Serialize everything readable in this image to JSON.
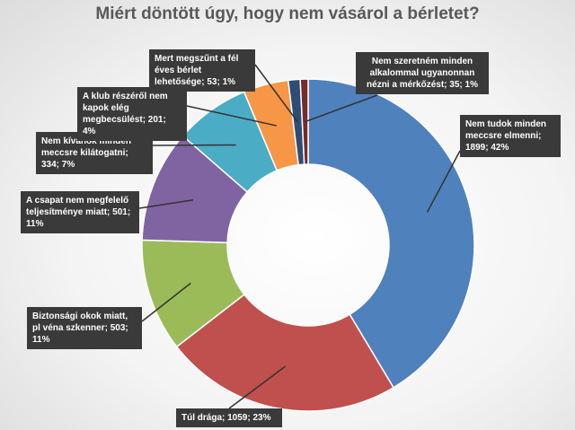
{
  "chart_data": {
    "type": "pie",
    "variant": "donut",
    "title": "Miért döntött úgy, hogy nem vásárol a bérletet?",
    "legend": "none",
    "slices": [
      {
        "label": "Nem tudok minden meccsre elmenni",
        "value": 1899,
        "percent": "42%",
        "color": "#4f81bd"
      },
      {
        "label": "Túl drága",
        "value": 1059,
        "percent": "23%",
        "color": "#c0504d"
      },
      {
        "label": "Biztonsági okok miatt, pl véna szkenner",
        "value": 503,
        "percent": "11%",
        "color": "#9bbb59"
      },
      {
        "label": "A csapat nem megfelelő teljesítménye miatt",
        "value": 501,
        "percent": "11%",
        "color": "#8064a2"
      },
      {
        "label": "Nem kívánok minden meccsre kilátogatni",
        "value": 334,
        "percent": "7%",
        "color": "#4bacc6"
      },
      {
        "label": "A klub részéről nem kapok elég megbecsülést",
        "value": 201,
        "percent": "4%",
        "color": "#f79646"
      },
      {
        "label": "Mert megszűnt a fél éves bérlet lehetősége",
        "value": 53,
        "percent": "1%",
        "color": "#2c4d75"
      },
      {
        "label": "Nem szeretném minden alkalommal ugyanonnan nézni a mérkőzést",
        "value": 35,
        "percent": "1%",
        "color": "#772c2a"
      }
    ],
    "data_labels": [
      "Nem tudok minden meccsre elmenni; 1899; 42%",
      "Túl drága; 1059; 23%",
      "Biztonsági okok miatt, pl véna szkenner; 503; 11%",
      "A csapat nem megfelelő teljesítménye miatt; 501; 11%",
      "Nem kívánok minden meccsre kilátogatni; 334; 7%",
      "A klub részéről nem kapok elég megbecsülést; 201; 4%",
      "Mert megszűnt a fél éves bérlet lehetősége; 53; 1%",
      "Nem szeretném minden alkalommal ugyanonnan nézni a mérkőzést; 35; 1%"
    ]
  }
}
